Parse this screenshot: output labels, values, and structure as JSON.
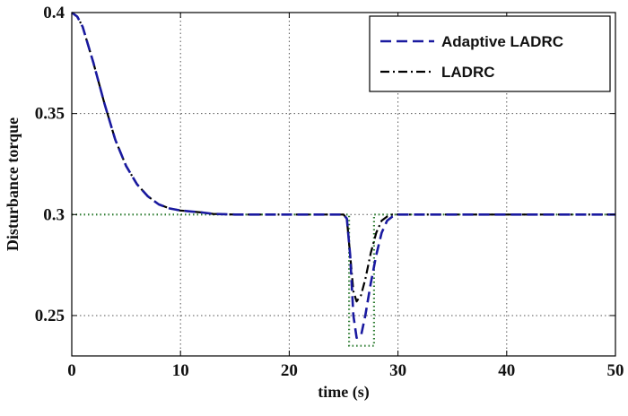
{
  "chart_data": {
    "type": "line",
    "title": "",
    "xlabel": "time (s)",
    "ylabel": "Disturbance torque",
    "xlim": [
      0,
      50
    ],
    "ylim": [
      0.23,
      0.4
    ],
    "xticks": [
      0,
      10,
      20,
      30,
      40,
      50
    ],
    "xtick_labels": [
      "0",
      "10",
      "20",
      "30",
      "40",
      "50"
    ],
    "yticks": [
      0.25,
      0.3,
      0.35,
      0.4
    ],
    "ytick_labels": [
      "0.25",
      "0.3",
      "0.35",
      "0.4"
    ],
    "grid": true,
    "legend_position": "top-right",
    "series": [
      {
        "name": "Adaptive LADRC",
        "color": "#1a1aa0",
        "style": "dashed",
        "points": [
          [
            0,
            0.4
          ],
          [
            0.5,
            0.398
          ],
          [
            1,
            0.393
          ],
          [
            2,
            0.375
          ],
          [
            3,
            0.355
          ],
          [
            4,
            0.337
          ],
          [
            5,
            0.324
          ],
          [
            6,
            0.315
          ],
          [
            7,
            0.309
          ],
          [
            8,
            0.305
          ],
          [
            9,
            0.303
          ],
          [
            10,
            0.302
          ],
          [
            11,
            0.3015
          ],
          [
            12,
            0.301
          ],
          [
            13,
            0.3003
          ],
          [
            15,
            0.3
          ],
          [
            25,
            0.3
          ],
          [
            25.3,
            0.298
          ],
          [
            25.6,
            0.28
          ],
          [
            25.9,
            0.25
          ],
          [
            26.2,
            0.239
          ],
          [
            26.6,
            0.24
          ],
          [
            27,
            0.25
          ],
          [
            27.5,
            0.266
          ],
          [
            28,
            0.28
          ],
          [
            28.5,
            0.291
          ],
          [
            29,
            0.297
          ],
          [
            29.5,
            0.299
          ],
          [
            30,
            0.3
          ],
          [
            50,
            0.3
          ]
        ]
      },
      {
        "name": "LADRC",
        "color": "#000000",
        "style": "dashdot",
        "points": [
          [
            0,
            0.4
          ],
          [
            0.5,
            0.398
          ],
          [
            1,
            0.393
          ],
          [
            2,
            0.375
          ],
          [
            3,
            0.355
          ],
          [
            4,
            0.337
          ],
          [
            5,
            0.324
          ],
          [
            6,
            0.315
          ],
          [
            7,
            0.309
          ],
          [
            8,
            0.305
          ],
          [
            9,
            0.303
          ],
          [
            10,
            0.302
          ],
          [
            11,
            0.3015
          ],
          [
            12,
            0.301
          ],
          [
            13,
            0.3003
          ],
          [
            15,
            0.3
          ],
          [
            25,
            0.3
          ],
          [
            25.3,
            0.298
          ],
          [
            25.6,
            0.28
          ],
          [
            25.9,
            0.262
          ],
          [
            26.2,
            0.257
          ],
          [
            26.6,
            0.26
          ],
          [
            27,
            0.268
          ],
          [
            27.5,
            0.281
          ],
          [
            28,
            0.291
          ],
          [
            28.5,
            0.297
          ],
          [
            29,
            0.299
          ],
          [
            29.5,
            0.3
          ],
          [
            50,
            0.3
          ]
        ]
      },
      {
        "name": "",
        "color": "#2e7d32",
        "style": "dotted",
        "points": [
          [
            0,
            0.3
          ],
          [
            25.5,
            0.3
          ],
          [
            25.5,
            0.235
          ],
          [
            27.8,
            0.235
          ],
          [
            27.8,
            0.3
          ],
          [
            50,
            0.3
          ]
        ]
      }
    ]
  }
}
